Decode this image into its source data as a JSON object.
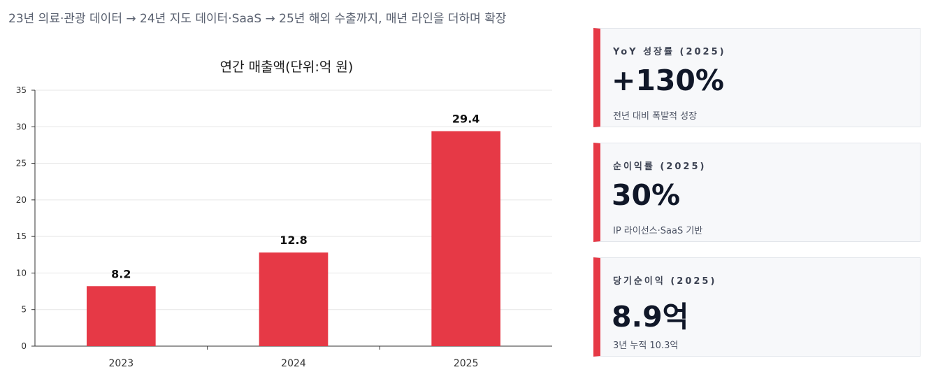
{
  "subtitle": "23년 의료·관광 데이터 → 24년 지도 데이터·SaaS → 25년 해외 수출까지, 매년 라인을 더하며 확장",
  "chart_data": {
    "type": "bar",
    "title": "연간 매출액(단위:억 원)",
    "categories": [
      "2023",
      "2024",
      "2025"
    ],
    "values": [
      8.2,
      12.8,
      29.4
    ],
    "data_labels": [
      "8.2",
      "12.8",
      "29.4"
    ],
    "ylim": [
      0,
      35
    ],
    "yticks": [
      0,
      5,
      10,
      15,
      20,
      25,
      30,
      35
    ],
    "grid": true,
    "bar_color": "#e63946",
    "xlabel": "",
    "ylabel": ""
  },
  "cards": [
    {
      "label": "YoY 성장률 (2025)",
      "value": "+130%",
      "note": "전년 대비 폭발적 성장"
    },
    {
      "label": "순이익률 (2025)",
      "value": "30%",
      "note": "IP 라이선스·SaaS 기반"
    },
    {
      "label": "당기순이익 (2025)",
      "value": "8.9억",
      "note": "3년 누적 10.3억"
    }
  ],
  "colors": {
    "accent": "#e63946",
    "text_dark": "#101728",
    "card_bg": "#f7f8fa"
  }
}
